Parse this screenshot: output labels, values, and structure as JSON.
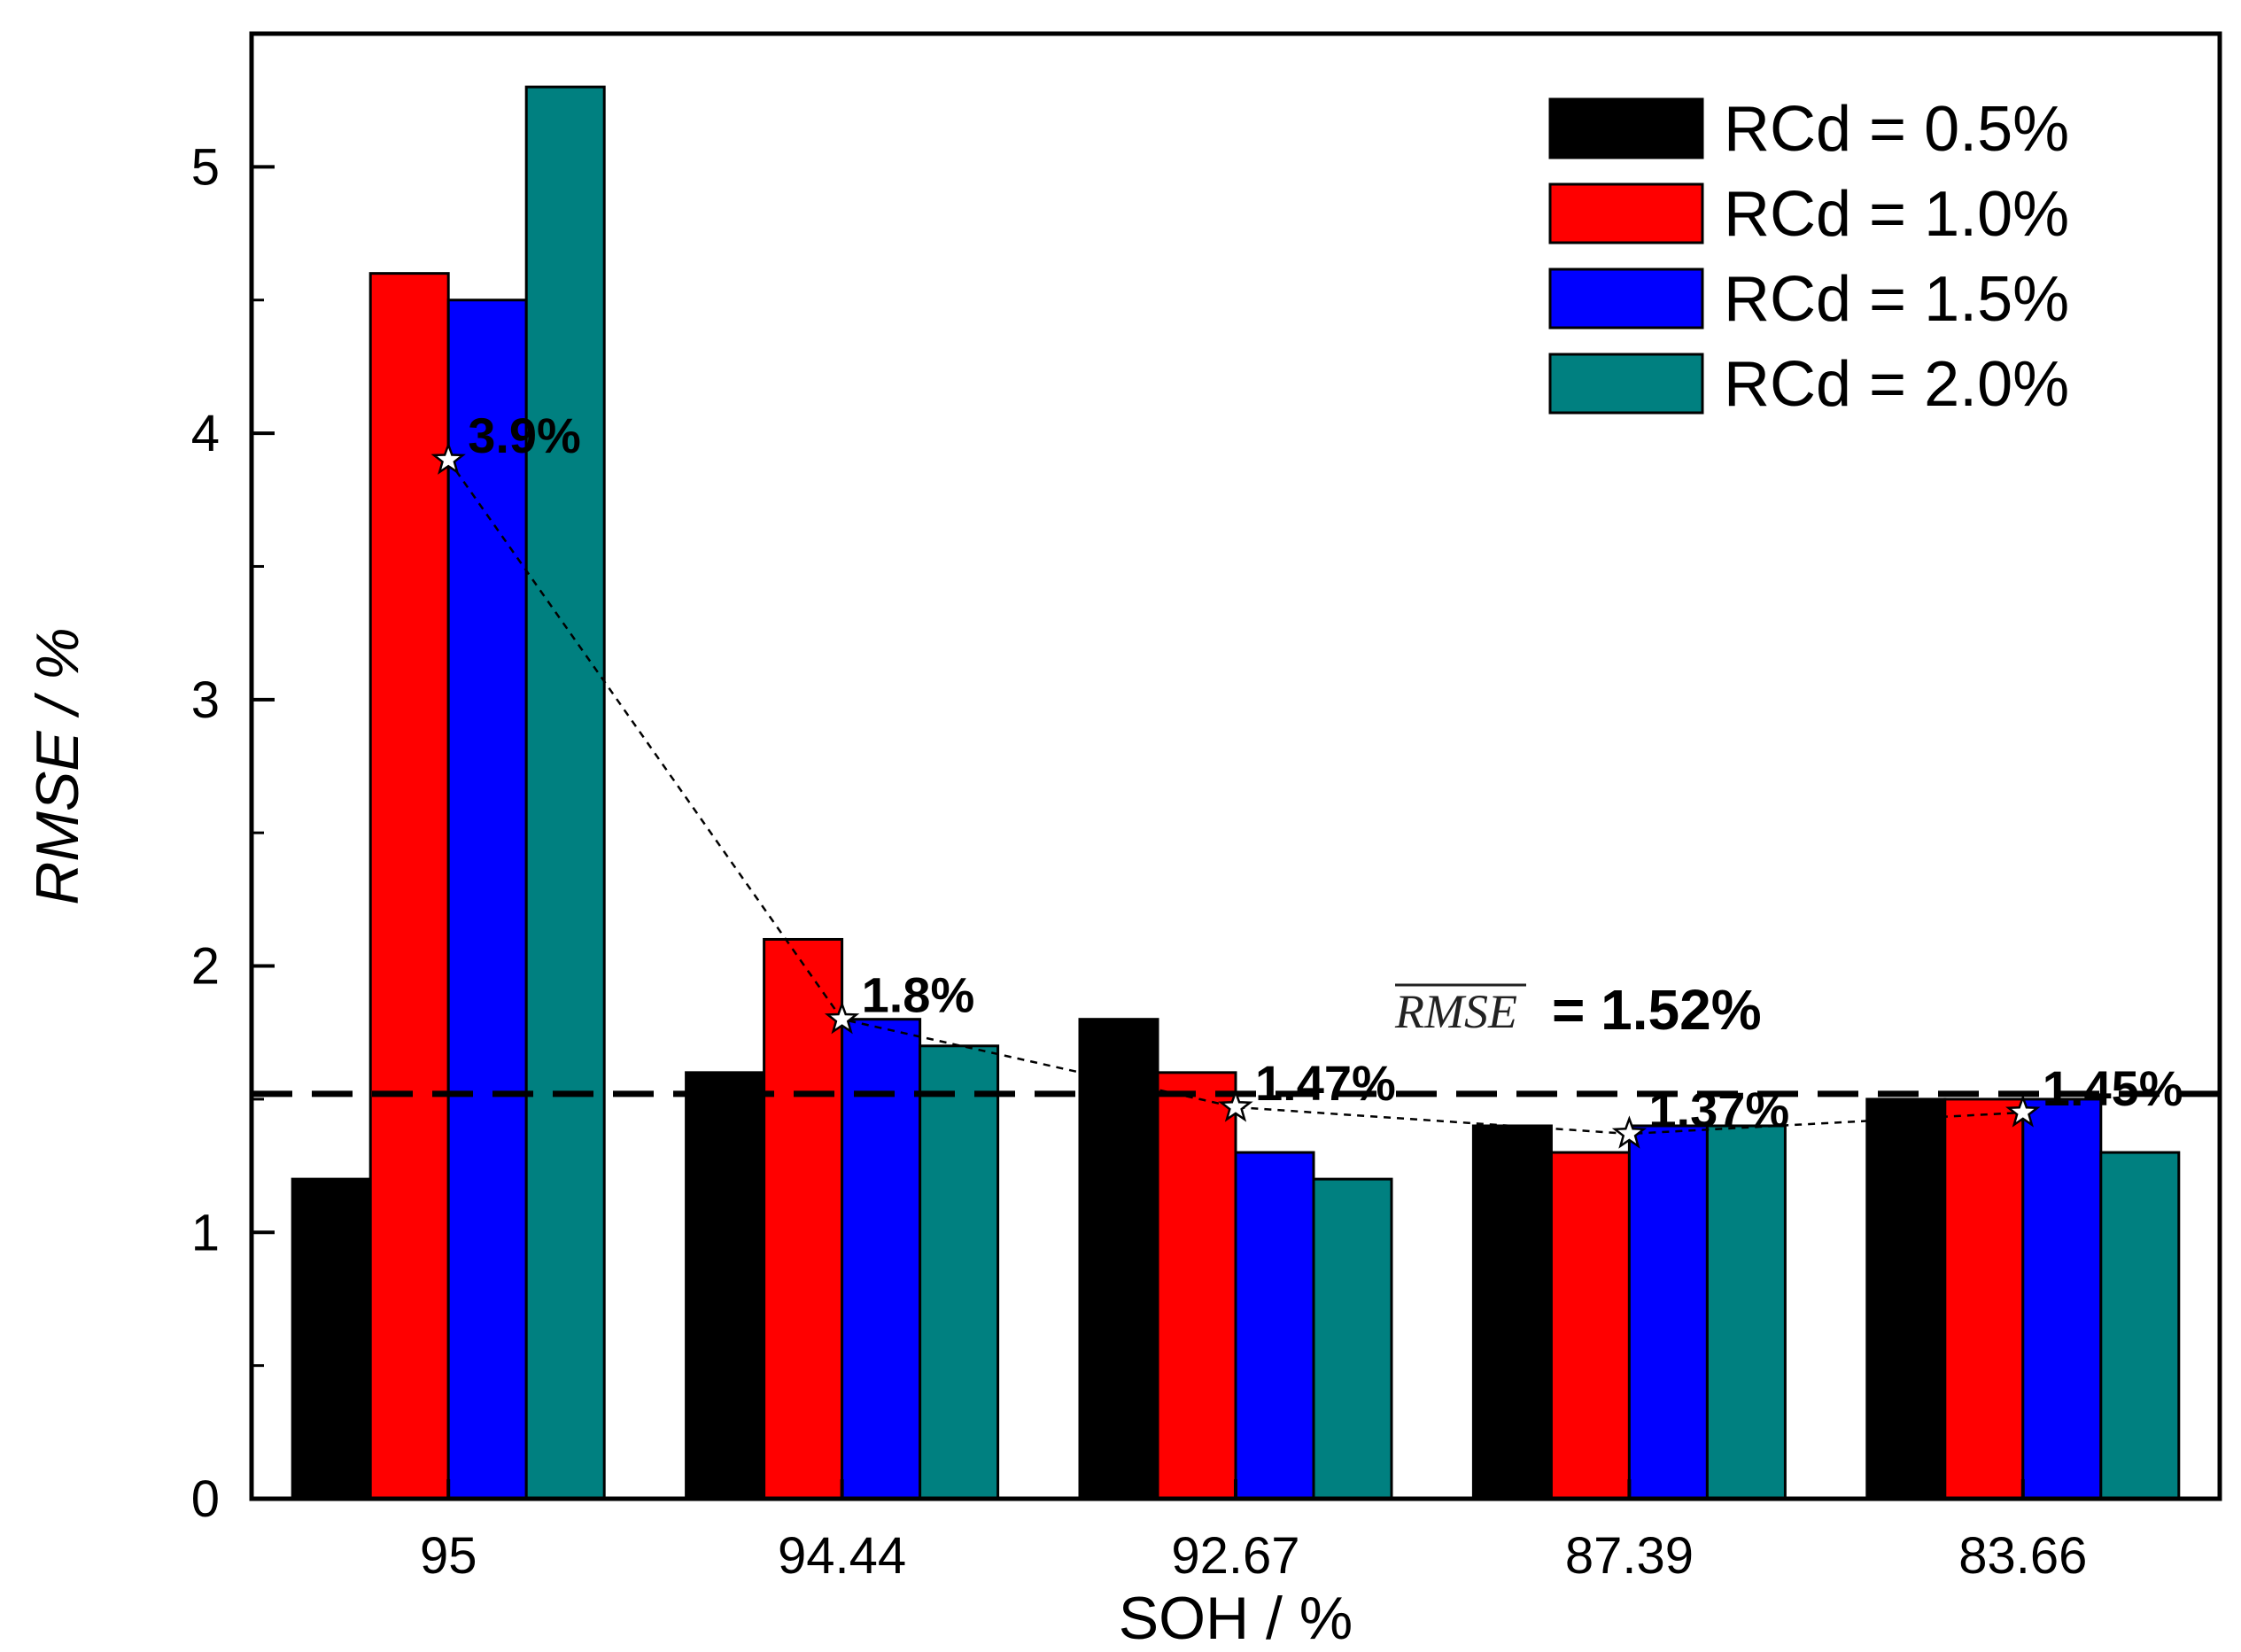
{
  "chart_data": {
    "type": "bar",
    "xlabel": "SOH / %",
    "ylabel": "RMSE / %",
    "ylim": [
      0,
      5.5
    ],
    "yticks": [
      0,
      1,
      2,
      3,
      4,
      5
    ],
    "categories": [
      "95",
      "94.44",
      "92.67",
      "87.39",
      "83.66"
    ],
    "series": [
      {
        "name": "RCd = 0.5%",
        "color": "#000000",
        "values": [
          1.2,
          1.6,
          1.8,
          1.4,
          1.5
        ]
      },
      {
        "name": "RCd = 1.0%",
        "color": "#ff0000",
        "values": [
          4.6,
          2.1,
          1.6,
          1.3,
          1.5
        ]
      },
      {
        "name": "RCd = 1.5%",
        "color": "#0000ff",
        "values": [
          4.5,
          1.8,
          1.3,
          1.4,
          1.5
        ]
      },
      {
        "name": "RCd = 2.0%",
        "color": "#008080",
        "values": [
          5.3,
          1.7,
          1.2,
          1.4,
          1.3
        ]
      }
    ],
    "mean_line": {
      "values": [
        3.9,
        1.8,
        1.47,
        1.37,
        1.45
      ],
      "labels": [
        "3.9%",
        "1.8%",
        "1.47%",
        "1.37%",
        "1.45%"
      ]
    },
    "overall_mean": {
      "value": 1.52,
      "symbol": "RMSE",
      "label": "= 1.52%"
    },
    "legend_position": "top-right",
    "grid": false
  }
}
